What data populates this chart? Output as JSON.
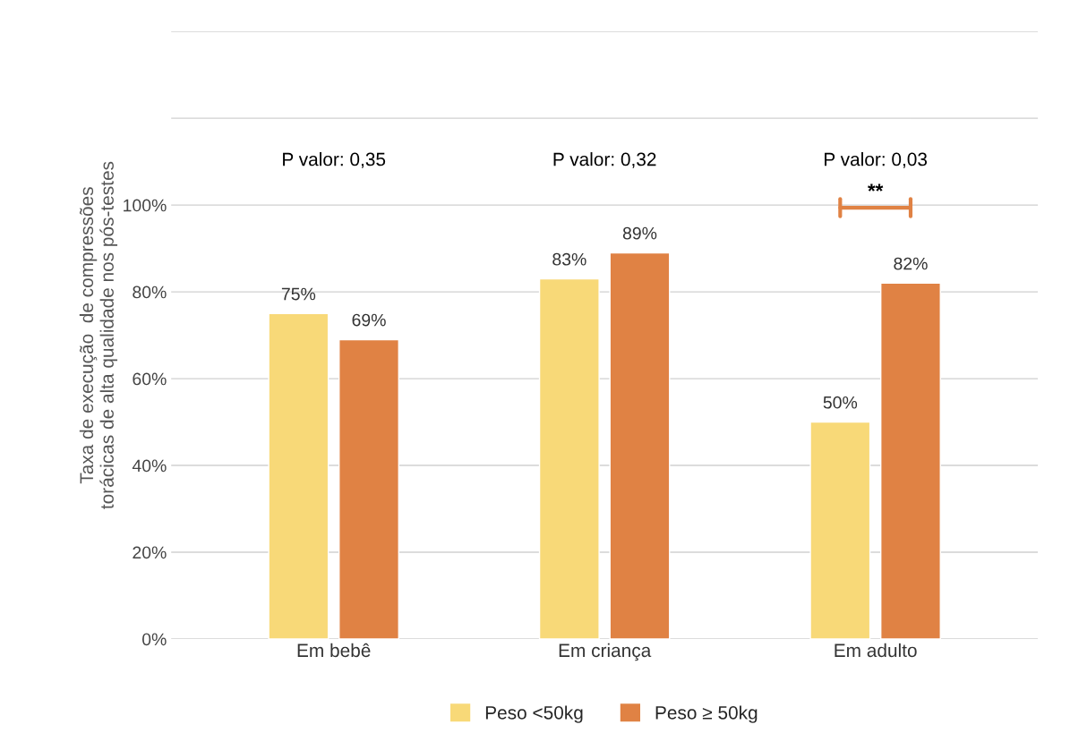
{
  "chart_data": {
    "type": "bar",
    "ylabel": "Taxa de execução  de compressões\ntorácicas de alta qualidade nos pós-testes",
    "categories": [
      "Em bebê",
      "Em criança",
      "Em adulto"
    ],
    "series": [
      {
        "name": "Peso <50kg",
        "color": "#f8d978",
        "values": [
          75,
          83,
          50
        ],
        "value_labels": [
          "75%",
          "83%",
          "50%"
        ]
      },
      {
        "name": "Peso ≥ 50kg",
        "color": "#e08244",
        "values": [
          69,
          89,
          82
        ],
        "value_labels": [
          "69%",
          "89%",
          "82%"
        ]
      }
    ],
    "ylim": [
      0,
      140
    ],
    "yticks": [
      {
        "value": 0,
        "label": "0%"
      },
      {
        "value": 20,
        "label": "20%"
      },
      {
        "value": 40,
        "label": "40%"
      },
      {
        "value": 60,
        "label": "60%"
      },
      {
        "value": 80,
        "label": "80%"
      },
      {
        "value": 100,
        "label": "100%"
      },
      {
        "value": 120,
        "label": null
      },
      {
        "value": 140,
        "label": null
      }
    ],
    "grid": "y",
    "legend": "bottom",
    "annotations": [
      "P valor: 0,35",
      "P valor: 0,32",
      "P valor: 0,03",
      "**"
    ]
  }
}
